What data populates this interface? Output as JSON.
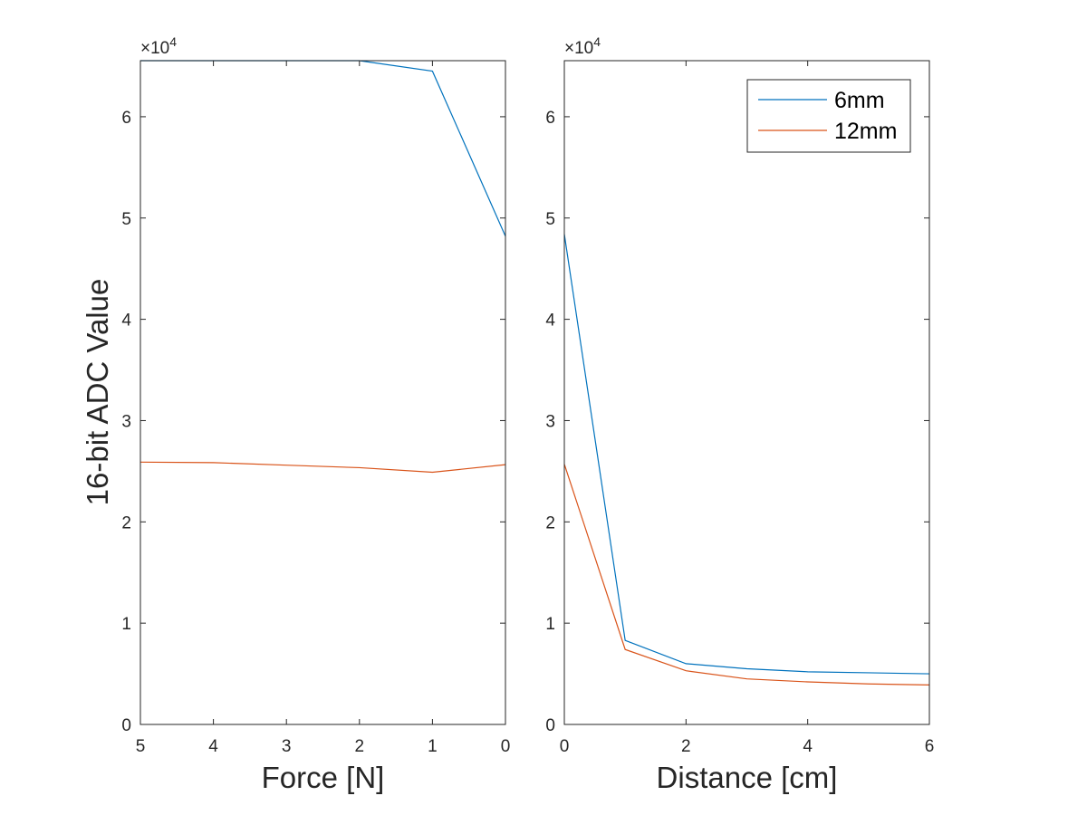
{
  "figure": {
    "ylabel": "16-bit ADC Value"
  },
  "chart_data": [
    {
      "type": "line",
      "xlabel": "Force [N]",
      "ylabel": "16-bit ADC Value",
      "xlim": [
        0,
        5
      ],
      "x_reversed": true,
      "ylim": [
        0,
        65535
      ],
      "x_ticks": [
        5,
        4,
        3,
        2,
        1,
        0
      ],
      "y_ticks": [
        0,
        1,
        2,
        3,
        4,
        5,
        6
      ],
      "y_multiplier": "×10",
      "y_multiplier_exp": "4",
      "grid": false,
      "series": [
        {
          "name": "6mm",
          "color": "#0072BD",
          "x": [
            5,
            4,
            3,
            2,
            1,
            0
          ],
          "values": [
            65535,
            65535,
            65535,
            65535,
            64500,
            48200
          ]
        },
        {
          "name": "12mm",
          "color": "#D95319",
          "x": [
            5,
            4,
            3,
            2,
            1,
            0
          ],
          "values": [
            25900,
            25850,
            25600,
            25350,
            24900,
            25650
          ]
        }
      ]
    },
    {
      "type": "line",
      "xlabel": "Distance [cm]",
      "xlim": [
        0,
        6
      ],
      "ylim": [
        0,
        65535
      ],
      "x_ticks": [
        0,
        2,
        4,
        6
      ],
      "y_ticks": [
        0,
        1,
        2,
        3,
        4,
        5,
        6
      ],
      "y_multiplier": "×10",
      "y_multiplier_exp": "4",
      "grid": false,
      "legend": {
        "placement": "top-right"
      },
      "series": [
        {
          "name": "6mm",
          "color": "#0072BD",
          "x": [
            0,
            1,
            2,
            3,
            4,
            5,
            6
          ],
          "values": [
            48400,
            8300,
            6000,
            5500,
            5200,
            5100,
            5000
          ]
        },
        {
          "name": "12mm",
          "color": "#D95319",
          "x": [
            0,
            1,
            2,
            3,
            4,
            5,
            6
          ],
          "values": [
            25700,
            7400,
            5300,
            4500,
            4200,
            4000,
            3900
          ]
        }
      ]
    }
  ]
}
